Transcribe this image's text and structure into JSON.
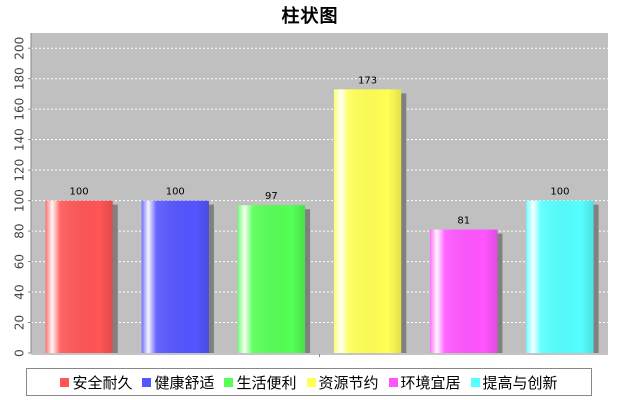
{
  "chart_data": {
    "type": "bar",
    "title": "柱状图",
    "categories": [
      "安全耐久",
      "健康舒适",
      "生活便利",
      "资源节约",
      "环境宜居",
      "提高与创新"
    ],
    "values": [
      100,
      100,
      97,
      173,
      81,
      100
    ],
    "colors": [
      "#ff5555",
      "#5555ff",
      "#55ff55",
      "#ffff55",
      "#ff55ff",
      "#55ffff"
    ],
    "ylim": [
      0,
      210
    ],
    "yticks": [
      0,
      20,
      40,
      60,
      80,
      100,
      120,
      140,
      160,
      180,
      200
    ],
    "grid": true,
    "legend_position": "bottom"
  }
}
